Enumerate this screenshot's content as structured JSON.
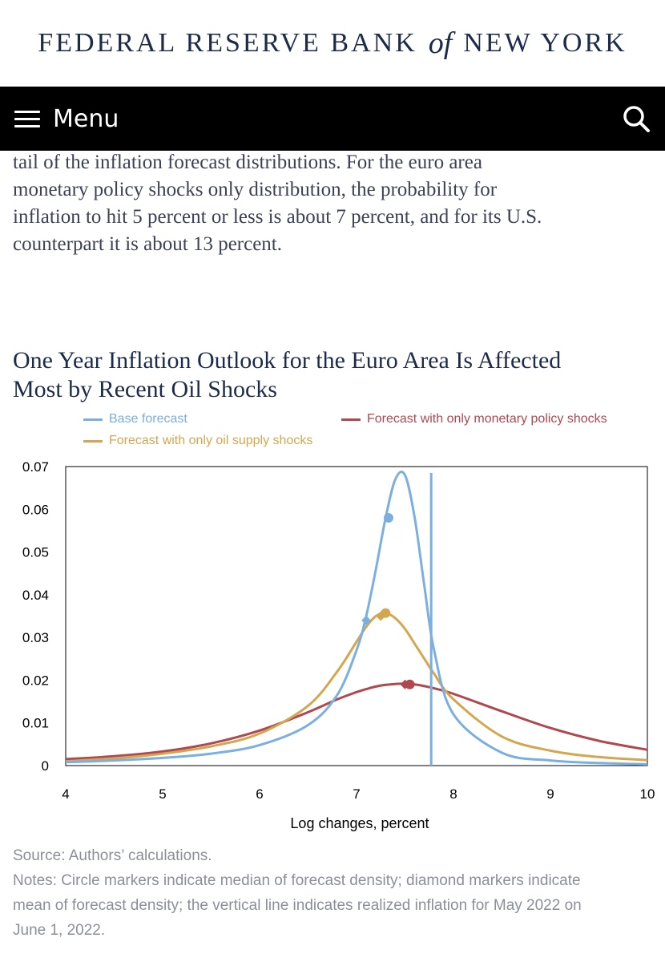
{
  "header": {
    "brand_pre": "FEDERAL RESERVE BANK",
    "brand_of": "of",
    "brand_post": "NEW YORK",
    "menu_label": "Menu",
    "search_icon": "search-icon",
    "menu_icon": "hamburger-icon"
  },
  "article": {
    "lines": [
      "tail of the inflation forecast distributions. For the euro area",
      "monetary policy shocks only distribution, the probability for",
      "inflation to hit 5 percent or less is about 7 percent, and for its U.S.",
      "counterpart it is about 13 percent."
    ]
  },
  "figure": {
    "title_lines": [
      "One Year Inflation Outlook for the Euro Area Is Affected",
      "Most by Recent Oil Shocks"
    ],
    "source": "Source: Authors’ calculations.",
    "notes_lines": [
      "Notes: Circle markers indicate median of forecast density; diamond markers indicate",
      "mean of forecast density; the vertical line indicates realized inflation for May 2022 on",
      "June 1, 2022."
    ]
  },
  "chart_data": {
    "type": "line",
    "title": "One Year Inflation Outlook for the Euro Area Is Affected Most by Recent Oil Shocks",
    "xlabel": "Log changes, percent",
    "ylabel": "",
    "xlim": [
      4,
      10
    ],
    "ylim": [
      0,
      0.07
    ],
    "xticks": [
      4,
      5,
      6,
      7,
      8,
      9,
      10
    ],
    "yticks": [
      0,
      0.01,
      0.02,
      0.03,
      0.04,
      0.05,
      0.06,
      0.07
    ],
    "ytick_labels": [
      "0",
      "0.01",
      "0.02",
      "0.03",
      "0.04",
      "0.05",
      "0.06",
      "0.07"
    ],
    "grid": false,
    "legend_position": "top",
    "x": [
      4.0,
      4.5,
      5.0,
      5.5,
      6.0,
      6.5,
      6.8,
      7.0,
      7.1,
      7.2,
      7.3,
      7.4,
      7.5,
      7.6,
      7.7,
      7.8,
      8.0,
      8.5,
      9.0,
      9.5,
      10.0
    ],
    "series": [
      {
        "name": "Base forecast",
        "color": "#7aafe0",
        "values": [
          0.0008,
          0.0012,
          0.0018,
          0.0028,
          0.0048,
          0.0095,
          0.0165,
          0.027,
          0.035,
          0.046,
          0.058,
          0.067,
          0.068,
          0.058,
          0.042,
          0.027,
          0.012,
          0.003,
          0.0012,
          0.0006,
          0.0003
        ],
        "median": {
          "x": 7.33,
          "y": 0.058
        },
        "mean": {
          "x": 7.1,
          "y": 0.034
        }
      },
      {
        "name": "Forecast with only oil supply shocks",
        "color": "#d4a64f",
        "values": [
          0.001,
          0.0017,
          0.0028,
          0.0045,
          0.0075,
          0.014,
          0.022,
          0.029,
          0.0325,
          0.035,
          0.0357,
          0.0345,
          0.032,
          0.0285,
          0.025,
          0.0215,
          0.0155,
          0.0068,
          0.0035,
          0.002,
          0.0013
        ],
        "median": {
          "x": 7.3,
          "y": 0.0357
        },
        "mean": {
          "x": 7.25,
          "y": 0.035
        }
      },
      {
        "name": "Forecast with only monetary policy shocks",
        "color": "#b0484f",
        "values": [
          0.0015,
          0.0022,
          0.0033,
          0.0052,
          0.0082,
          0.0125,
          0.0155,
          0.0172,
          0.0179,
          0.0185,
          0.0189,
          0.0191,
          0.0192,
          0.019,
          0.0186,
          0.0181,
          0.0168,
          0.0127,
          0.0088,
          0.0058,
          0.0037
        ],
        "median": {
          "x": 7.55,
          "y": 0.019
        },
        "mean": {
          "x": 7.5,
          "y": 0.019
        }
      }
    ],
    "vertical_line": {
      "x": 7.77,
      "color": "#7aafe0"
    }
  }
}
